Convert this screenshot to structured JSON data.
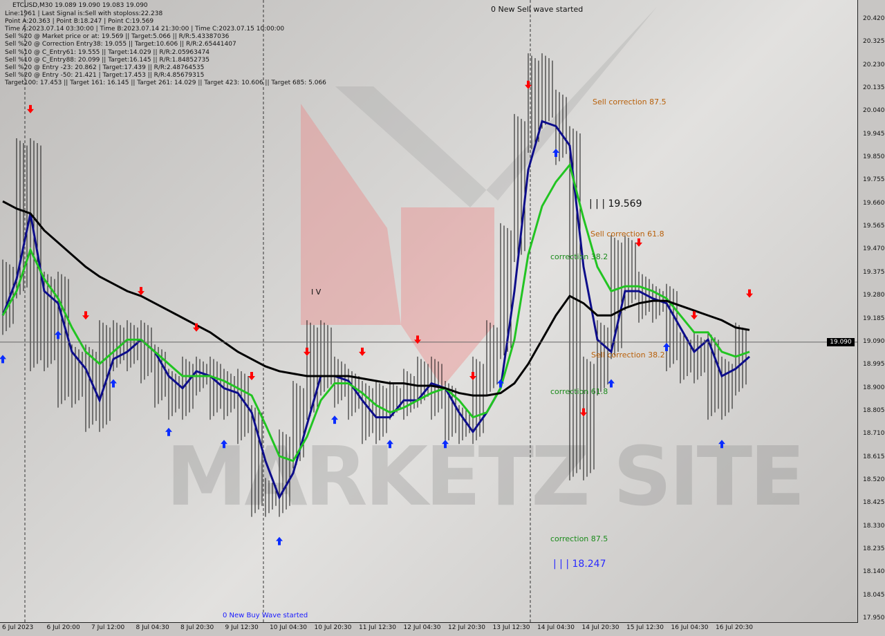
{
  "header": {
    "symbol_line": "ETCUSD,M30  19.089 19.090 19.083 19.090",
    "lines": [
      "Line:1961 | Last Signal is:Sell with stoploss:22.238",
      "Point A:20.363 | Point B:18.247 | Point C:19.569",
      "Time A:2023.07.14 03:30:00 | Time B:2023.07.14 21:30:00 | Time C:2023.07.15 10:00:00",
      "Sell %20 @ Market price or at: 19.569 || Target:5.066 || R/R:5.43387036",
      "Sell %20 @ Correction Entry38: 19.055 || Target:10.606 || R/R:2.65441407",
      "Sell %10 @ C_Entry61: 19.555 || Target:14.029 || R/R:2.05963474",
      "Sell %10 @ C_Entry88: 20.099 || Target:16.145 || R/R:1.84852735",
      "Sell %20 @ Entry -23: 20.862 | Target:17.439 || R/R:2.48764535",
      "Sell %20 @ Entry -50: 21.421 | Target:17.453 || R/R:4.85679315",
      "Target100: 17.453 || Target 161: 16.145 || Target 261: 14.029 || Target 423: 10.606 || Target 685: 5.066"
    ]
  },
  "annotations": {
    "sell_wave": "0 New Sell wave started",
    "buy_wave": "0 New Buy Wave started",
    "sell_corr_875": "Sell correction 87.5",
    "point_c": "| | | 19.569",
    "sell_corr_618": "Sell correction 61.8",
    "corr_382": "correction 38.2",
    "sell_corr_382": "Sell correction 38.2",
    "corr_618": "correction 61.8",
    "corr_875": "correction 87.5",
    "point_b": "| | | 18.247",
    "wave_iv": "I V"
  },
  "watermark": "MARKETZ SITE",
  "current_price": "19.090",
  "colors": {
    "up_arrow": "#0a2cff",
    "down_arrow": "#ff0000",
    "fast_ma": "#0d0d8a",
    "mid_ma": "#22c422",
    "slow_ma": "#000000",
    "correction_sell": "#b8600a",
    "correction_buy": "#1a8a1a"
  },
  "chart_data": {
    "type": "line",
    "title": "ETCUSD,M30",
    "ylim": [
      17.95,
      20.42
    ],
    "yticks": [
      "20.420",
      "20.325",
      "20.230",
      "20.135",
      "20.040",
      "19.945",
      "19.850",
      "19.755",
      "19.660",
      "19.565",
      "19.470",
      "19.375",
      "19.280",
      "19.185",
      "19.090",
      "18.995",
      "18.900",
      "18.805",
      "18.710",
      "18.615",
      "18.520",
      "18.425",
      "18.330",
      "18.235",
      "18.140",
      "18.045",
      "17.950"
    ],
    "xticks": [
      "6 Jul 2023",
      "6 Jul 20:00",
      "7 Jul 12:00",
      "8 Jul 04:30",
      "8 Jul 20:30",
      "9 Jul 12:30",
      "10 Jul 04:30",
      "10 Jul 20:30",
      "11 Jul 12:30",
      "12 Jul 04:30",
      "12 Jul 20:30",
      "13 Jul 12:30",
      "14 Jul 04:30",
      "14 Jul 20:30",
      "15 Jul 12:30",
      "16 Jul 04:30",
      "16 Jul 20:30"
    ],
    "series": [
      {
        "key": "price",
        "values": [
          19.2,
          19.35,
          19.85,
          19.05,
          19.3,
          18.9,
          19.0,
          18.8,
          19.1,
          19.05,
          19.1,
          19.0,
          18.9,
          18.85,
          18.95,
          18.95,
          18.85,
          18.9,
          18.75,
          18.45,
          18.45,
          18.65,
          18.85,
          19.1,
          18.95,
          18.9,
          18.85,
          18.75,
          18.85,
          18.85,
          18.9,
          18.95,
          18.85,
          18.75,
          18.75,
          18.95,
          19.1,
          19.5,
          19.95,
          20.2,
          20.05,
          19.9,
          18.6,
          18.95,
          19.1,
          19.45,
          19.3,
          19.25,
          19.25,
          19.05,
          19.0,
          19.05,
          18.85,
          18.95,
          19.09
        ]
      },
      {
        "key": "fast_ma",
        "values": [
          19.2,
          19.35,
          19.62,
          19.3,
          19.25,
          19.05,
          18.98,
          18.85,
          19.02,
          19.05,
          19.1,
          19.05,
          18.95,
          18.9,
          18.97,
          18.95,
          18.9,
          18.88,
          18.8,
          18.6,
          18.45,
          18.55,
          18.75,
          18.95,
          18.95,
          18.93,
          18.85,
          18.78,
          18.78,
          18.85,
          18.85,
          18.92,
          18.9,
          18.8,
          18.72,
          18.8,
          18.9,
          19.3,
          19.8,
          20.0,
          19.98,
          19.9,
          19.4,
          19.1,
          19.05,
          19.3,
          19.3,
          19.27,
          19.25,
          19.15,
          19.05,
          19.1,
          18.95,
          18.98,
          19.03
        ]
      },
      {
        "key": "mid_ma",
        "values": [
          19.2,
          19.3,
          19.47,
          19.35,
          19.27,
          19.15,
          19.05,
          19.0,
          19.05,
          19.1,
          19.1,
          19.05,
          19.0,
          18.95,
          18.95,
          18.95,
          18.93,
          18.9,
          18.87,
          18.75,
          18.62,
          18.6,
          18.7,
          18.85,
          18.92,
          18.92,
          18.88,
          18.83,
          18.8,
          18.82,
          18.85,
          18.88,
          18.9,
          18.85,
          18.78,
          18.8,
          18.9,
          19.1,
          19.45,
          19.65,
          19.75,
          19.82,
          19.6,
          19.4,
          19.3,
          19.32,
          19.32,
          19.3,
          19.27,
          19.2,
          19.13,
          19.13,
          19.05,
          19.03,
          19.05
        ]
      },
      {
        "key": "slow_ma",
        "values": [
          19.67,
          19.64,
          19.62,
          19.55,
          19.5,
          19.45,
          19.4,
          19.36,
          19.33,
          19.3,
          19.28,
          19.25,
          19.22,
          19.19,
          19.16,
          19.13,
          19.09,
          19.05,
          19.02,
          18.99,
          18.97,
          18.96,
          18.95,
          18.95,
          18.95,
          18.95,
          18.94,
          18.93,
          18.92,
          18.92,
          18.91,
          18.91,
          18.9,
          18.88,
          18.87,
          18.87,
          18.88,
          18.92,
          19.0,
          19.1,
          19.2,
          19.28,
          19.25,
          19.2,
          19.2,
          19.23,
          19.25,
          19.26,
          19.26,
          19.24,
          19.22,
          19.2,
          19.18,
          19.15,
          19.14
        ]
      }
    ],
    "grid": false,
    "legend": "none"
  }
}
